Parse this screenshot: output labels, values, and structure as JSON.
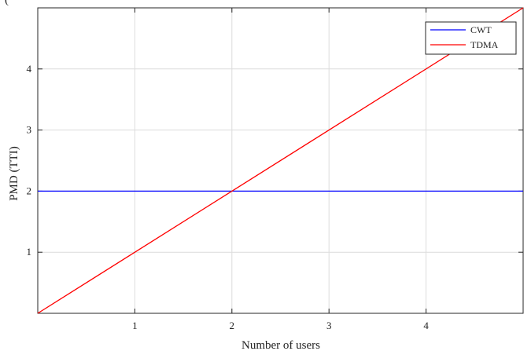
{
  "header_fragment": "(",
  "chart_data": {
    "type": "line",
    "title": "",
    "xlabel": "Number of users",
    "ylabel": "PMD (TTI)",
    "xlim": [
      0,
      5
    ],
    "ylim": [
      0,
      5
    ],
    "xticks": [
      1,
      2,
      3,
      4
    ],
    "yticks": [
      1,
      2,
      3,
      4
    ],
    "grid": true,
    "legend_position": "top-right",
    "series": [
      {
        "name": "CWT",
        "color": "#0000ff",
        "x": [
          0,
          5
        ],
        "y": [
          2,
          2
        ]
      },
      {
        "name": "TDMA",
        "color": "#ff0000",
        "x": [
          0,
          5
        ],
        "y": [
          0,
          5
        ]
      }
    ]
  }
}
